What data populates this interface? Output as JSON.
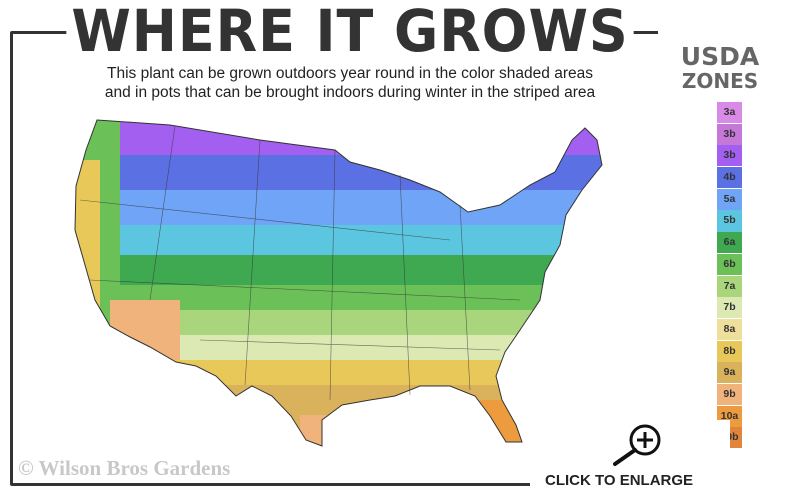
{
  "header": {
    "title": "WHERE IT GROWS",
    "subtitle_line1": "This plant can be grown outdoors year round in the color shaded areas",
    "subtitle_line2": "and in pots that can be brought indoors during winter in the striped area"
  },
  "legend": {
    "title_line1": "USDA",
    "title_line2": "ZONES",
    "zones": [
      {
        "label": "3a",
        "color": "#d98ae6"
      },
      {
        "label": "3b",
        "color": "#c578d8"
      },
      {
        "label": "3b",
        "color": "#a25ff0"
      },
      {
        "label": "4b",
        "color": "#5b70e2"
      },
      {
        "label": "5a",
        "color": "#70a4f6"
      },
      {
        "label": "5b",
        "color": "#5cc6e0"
      },
      {
        "label": "6a",
        "color": "#3ea950"
      },
      {
        "label": "6b",
        "color": "#6bc158"
      },
      {
        "label": "7a",
        "color": "#a9d67c"
      },
      {
        "label": "7b",
        "color": "#dde9b3"
      },
      {
        "label": "8a",
        "color": "#efdf9c"
      },
      {
        "label": "8b",
        "color": "#e9c85a"
      },
      {
        "label": "9a",
        "color": "#dab25c"
      },
      {
        "label": "9b",
        "color": "#f1b37c"
      },
      {
        "label": "10a",
        "color": "#ec9b3e"
      },
      {
        "label": "10b",
        "color": "#e0853b"
      }
    ]
  },
  "footer": {
    "watermark": "© Wilson Bros Gardens",
    "enlarge_label": "CLICK TO ENLARGE",
    "enlarge_icon": "zoom-in-icon"
  }
}
